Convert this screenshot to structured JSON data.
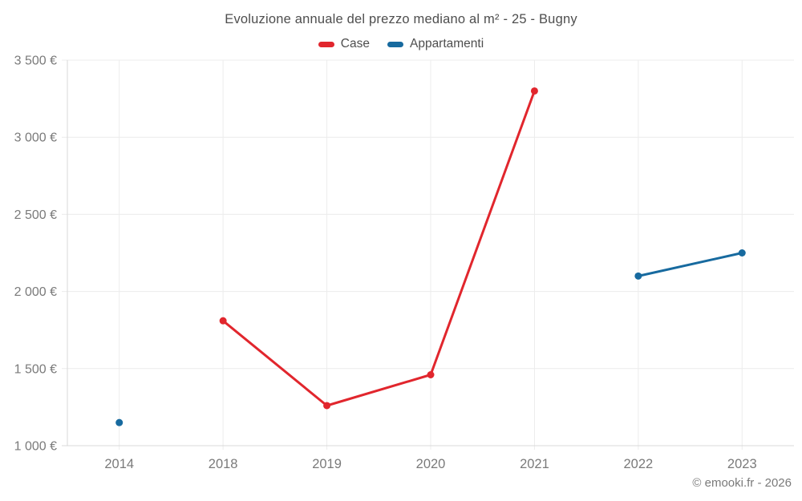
{
  "chart_data": {
    "type": "line",
    "title": "Evoluzione annuale del prezzo mediano al m² - 25 - Bugny",
    "categories": [
      "2014",
      "2018",
      "2019",
      "2020",
      "2021",
      "2022",
      "2023"
    ],
    "series": [
      {
        "name": "Case",
        "color": "#e1262d",
        "values": [
          null,
          1810,
          1260,
          1460,
          3300,
          null,
          null
        ]
      },
      {
        "name": "Appartamenti",
        "color": "#176a9f",
        "values": [
          1150,
          null,
          null,
          null,
          null,
          2100,
          2250
        ]
      }
    ],
    "y_ticks": [
      {
        "value": 1000,
        "label": "1 000 €"
      },
      {
        "value": 1500,
        "label": "1 500 €"
      },
      {
        "value": 2000,
        "label": "2 000 €"
      },
      {
        "value": 2500,
        "label": "2 500 €"
      },
      {
        "value": 3000,
        "label": "3 000 €"
      },
      {
        "value": 3500,
        "label": "3 500 €"
      }
    ],
    "ylim": [
      1000,
      3500
    ],
    "xlabel": "",
    "ylabel": "",
    "grid": true,
    "legend_position": "top",
    "colors": {
      "grid": "#ececec",
      "axis": "#d9d9d9",
      "tick_text": "#7a7a7a",
      "title_text": "#4e4e4e"
    }
  },
  "footer": "© emooki.fr - 2026"
}
